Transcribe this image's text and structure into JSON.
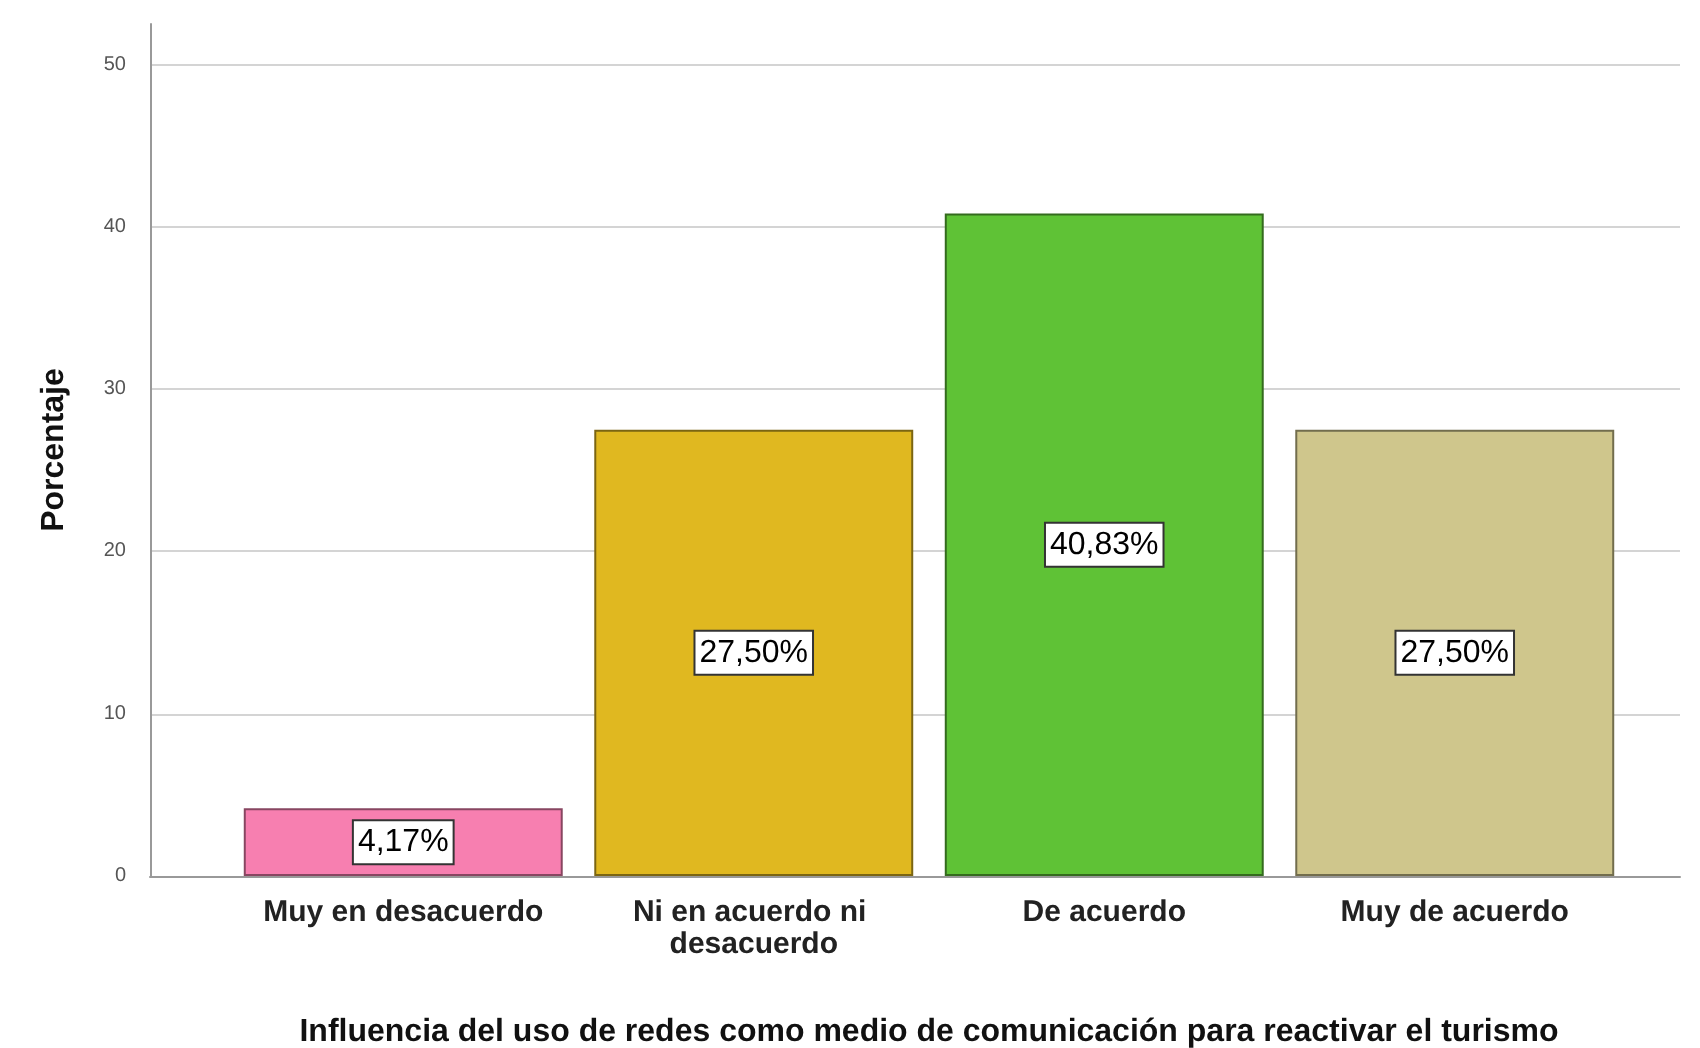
{
  "chart_data": {
    "type": "bar",
    "xlabel": "Influencia del uso de redes como medio de comunicación para reactivar el turismo",
    "ylabel": "Porcentaje",
    "categories": [
      "Muy en desacuerdo",
      "Ni en acuerdo ni desacuerdo",
      "De acuerdo",
      "Muy de acuerdo"
    ],
    "values": [
      4.17,
      27.5,
      40.83,
      27.5
    ],
    "colors": [
      "#f77fb0",
      "#e0b820",
      "#5fc236",
      "#cfc68c"
    ],
    "value_labels": [
      "4,17%",
      "27,50%",
      "40,83%",
      "27,50%"
    ],
    "ylim": [
      0,
      52.5
    ],
    "yticks": [
      0,
      10,
      20,
      30,
      40,
      50
    ],
    "grid": "y"
  }
}
